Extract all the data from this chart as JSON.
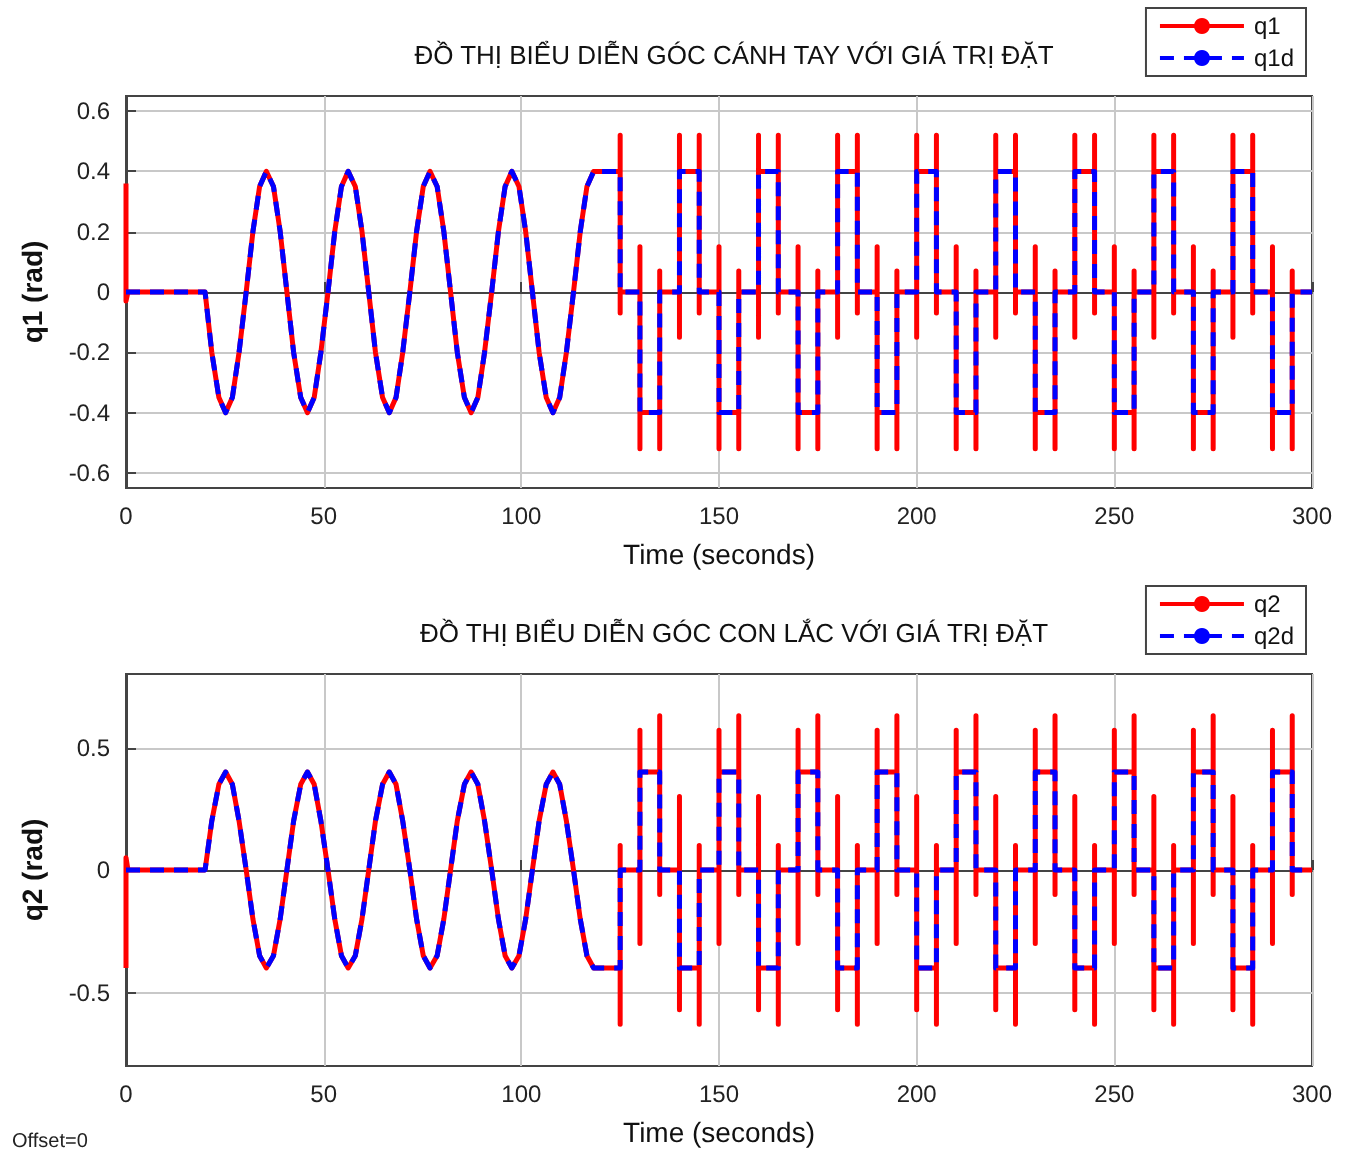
{
  "chart_data": [
    {
      "type": "line",
      "title": "ĐỒ THỊ BIỂU DIỄN GÓC CÁNH TAY VỚI GIÁ TRỊ ĐẶT",
      "xlabel": "Time (seconds)",
      "ylabel": "q1 (rad)",
      "x": [
        0,
        0,
        0.5,
        20,
        21.7,
        23.5,
        25.2,
        26.9,
        28.6,
        30.4,
        32.1,
        33.8,
        35.5,
        37.3,
        39,
        40.7,
        42.4,
        44.2,
        45.9,
        47.6,
        49.3,
        51.1,
        52.8,
        54.5,
        56.2,
        58,
        59.7,
        61.4,
        63.1,
        64.9,
        66.6,
        68.3,
        70,
        71.8,
        73.5,
        75.2,
        76.9,
        78.7,
        80.4,
        82.1,
        83.8,
        85.6,
        87.3,
        89,
        90.7,
        92.5,
        94.2,
        95.9,
        97.6,
        99.4,
        101.1,
        102.8,
        104.5,
        106.3,
        108,
        109.7,
        111.4,
        113.2,
        114.9,
        116.6,
        118.3,
        125,
        125,
        125,
        125,
        130,
        130,
        130,
        130,
        135,
        135,
        135,
        135,
        140,
        140,
        140,
        140,
        145,
        145,
        145,
        145,
        150,
        150,
        150,
        150,
        155,
        155,
        155,
        155,
        160,
        160,
        160,
        160,
        165,
        165,
        165,
        165,
        170,
        170,
        170,
        170,
        175,
        175,
        175,
        175,
        180,
        180,
        180,
        180,
        185,
        185,
        185,
        185,
        190,
        190,
        190,
        190,
        195,
        195,
        195,
        195,
        200,
        200,
        200,
        200,
        205,
        205,
        205,
        205,
        210,
        210,
        210,
        210,
        215,
        215,
        215,
        215,
        220,
        220,
        220,
        220,
        225,
        225,
        225,
        225,
        230,
        230,
        230,
        230,
        235,
        235,
        235,
        235,
        240,
        240,
        240,
        240,
        245,
        245,
        245,
        245,
        250,
        250,
        250,
        250,
        255,
        255,
        255,
        255,
        260,
        260,
        260,
        260,
        265,
        265,
        265,
        265,
        270,
        270,
        270,
        270,
        275,
        275,
        275,
        275,
        280,
        280,
        280,
        280,
        285,
        285,
        285,
        285,
        290,
        290,
        290,
        290,
        295,
        295,
        295,
        295,
        300
      ],
      "series": [
        {
          "name": "q1",
          "color": "#ff0000",
          "line_style": "solid",
          "values": [
            0.36,
            -0.03,
            0,
            0,
            -0.2,
            -0.35,
            -0.4,
            -0.35,
            -0.2,
            0,
            0.2,
            0.35,
            0.4,
            0.35,
            0.2,
            0,
            -0.2,
            -0.35,
            -0.4,
            -0.35,
            -0.2,
            0,
            0.2,
            0.35,
            0.4,
            0.35,
            0.2,
            0,
            -0.2,
            -0.35,
            -0.4,
            -0.35,
            -0.2,
            0,
            0.2,
            0.35,
            0.4,
            0.35,
            0.2,
            0,
            -0.2,
            -0.35,
            -0.4,
            -0.35,
            -0.2,
            0,
            0.2,
            0.35,
            0.4,
            0.35,
            0.2,
            0,
            -0.2,
            -0.35,
            -0.4,
            -0.35,
            -0.2,
            0,
            0.2,
            0.35,
            0.4,
            0.4,
            0.52,
            -0.07,
            0,
            0,
            0.15,
            -0.52,
            -0.4,
            -0.4,
            -0.52,
            0.07,
            0,
            0,
            -0.15,
            0.52,
            0.4,
            0.4,
            0.52,
            -0.07,
            0,
            0,
            0.15,
            -0.52,
            -0.4,
            -0.4,
            -0.52,
            0.07,
            0,
            0,
            -0.15,
            0.52,
            0.4,
            0.4,
            0.52,
            -0.07,
            0,
            0,
            0.15,
            -0.52,
            -0.4,
            -0.4,
            -0.52,
            0.07,
            0,
            0,
            -0.15,
            0.52,
            0.4,
            0.4,
            0.52,
            -0.07,
            0,
            0,
            0.15,
            -0.52,
            -0.4,
            -0.4,
            -0.52,
            0.07,
            0,
            0,
            -0.15,
            0.52,
            0.4,
            0.4,
            0.52,
            -0.07,
            0,
            0,
            0.15,
            -0.52,
            -0.4,
            -0.4,
            -0.52,
            0.07,
            0,
            0,
            -0.15,
            0.52,
            0.4,
            0.4,
            0.52,
            -0.07,
            0,
            0,
            0.15,
            -0.52,
            -0.4,
            -0.4,
            -0.52,
            0.07,
            0,
            0,
            -0.15,
            0.52,
            0.4,
            0.4,
            0.52,
            -0.07,
            0,
            0,
            0.15,
            -0.52,
            -0.4,
            -0.4,
            -0.52,
            0.07,
            0,
            0,
            -0.15,
            0.52,
            0.4,
            0.4,
            0.52,
            -0.07,
            0,
            0,
            0.15,
            -0.52,
            -0.4,
            -0.4,
            -0.52,
            0.07,
            0,
            0,
            -0.15,
            0.52,
            0.4,
            0.4,
            0.52,
            -0.07,
            0,
            0,
            0.15,
            -0.52,
            -0.4,
            -0.4,
            -0.52,
            0.07,
            0,
            0
          ]
        },
        {
          "name": "q1d",
          "color": "#0000ff",
          "line_style": "dashed",
          "values": [
            0,
            0,
            0,
            0,
            -0.2,
            -0.35,
            -0.4,
            -0.35,
            -0.2,
            0,
            0.2,
            0.35,
            0.4,
            0.35,
            0.2,
            0,
            -0.2,
            -0.35,
            -0.4,
            -0.35,
            -0.2,
            0,
            0.2,
            0.35,
            0.4,
            0.35,
            0.2,
            0,
            -0.2,
            -0.35,
            -0.4,
            -0.35,
            -0.2,
            0,
            0.2,
            0.35,
            0.4,
            0.35,
            0.2,
            0,
            -0.2,
            -0.35,
            -0.4,
            -0.35,
            -0.2,
            0,
            0.2,
            0.35,
            0.4,
            0.35,
            0.2,
            0,
            -0.2,
            -0.35,
            -0.4,
            -0.35,
            -0.2,
            0,
            0.2,
            0.35,
            0.4,
            0.4,
            0.4,
            0,
            0,
            0,
            0,
            -0.4,
            -0.4,
            -0.4,
            -0.4,
            0,
            0,
            0,
            0,
            0.4,
            0.4,
            0.4,
            0.4,
            0,
            0,
            0,
            0,
            -0.4,
            -0.4,
            -0.4,
            -0.4,
            0,
            0,
            0,
            0,
            0.4,
            0.4,
            0.4,
            0.4,
            0,
            0,
            0,
            0,
            -0.4,
            -0.4,
            -0.4,
            -0.4,
            0,
            0,
            0,
            0,
            0.4,
            0.4,
            0.4,
            0.4,
            0,
            0,
            0,
            0,
            -0.4,
            -0.4,
            -0.4,
            -0.4,
            0,
            0,
            0,
            0,
            0.4,
            0.4,
            0.4,
            0.4,
            0,
            0,
            0,
            0,
            -0.4,
            -0.4,
            -0.4,
            -0.4,
            0,
            0,
            0,
            0,
            0.4,
            0.4,
            0.4,
            0.4,
            0,
            0,
            0,
            0,
            -0.4,
            -0.4,
            -0.4,
            -0.4,
            0,
            0,
            0,
            0,
            0.4,
            0.4,
            0.4,
            0.4,
            0,
            0,
            0,
            0,
            -0.4,
            -0.4,
            -0.4,
            -0.4,
            0,
            0,
            0,
            0,
            0.4,
            0.4,
            0.4,
            0.4,
            0,
            0,
            0,
            0,
            -0.4,
            -0.4,
            -0.4,
            -0.4,
            0,
            0,
            0,
            0,
            0.4,
            0.4,
            0.4,
            0.4,
            0,
            0,
            0,
            0,
            -0.4,
            -0.4,
            -0.4,
            -0.4,
            0,
            0,
            0
          ]
        }
      ],
      "xlim": [
        0,
        300
      ],
      "xticks": [
        0,
        50,
        100,
        150,
        200,
        250,
        300
      ],
      "ylim": [
        -0.65,
        0.65
      ],
      "yticks": [
        -0.6,
        -0.4,
        -0.2,
        0,
        0.2,
        0.4,
        0.6
      ],
      "grid": true,
      "legend": "top right"
    },
    {
      "type": "line",
      "title": "ĐỒ THỊ BIỂU DIỄN GÓC CON LẮC VỚI GIÁ TRỊ ĐẶT",
      "xlabel": "Time (seconds)",
      "ylabel": "q2 (rad)",
      "x": [
        0,
        0,
        0.5,
        20,
        21.7,
        23.5,
        25.2,
        26.9,
        28.6,
        30.4,
        32.1,
        33.8,
        35.5,
        37.3,
        39,
        40.7,
        42.4,
        44.2,
        45.9,
        47.6,
        49.3,
        51.1,
        52.8,
        54.5,
        56.2,
        58,
        59.7,
        61.4,
        63.1,
        64.9,
        66.6,
        68.3,
        70,
        71.8,
        73.5,
        75.2,
        76.9,
        78.7,
        80.4,
        82.1,
        83.8,
        85.6,
        87.3,
        89,
        90.7,
        92.5,
        94.2,
        95.9,
        97.6,
        99.4,
        101.1,
        102.8,
        104.5,
        106.3,
        108,
        109.7,
        111.4,
        113.2,
        114.9,
        116.6,
        118.3,
        125,
        125,
        125,
        125,
        130,
        130,
        130,
        130,
        135,
        135,
        135,
        135,
        140,
        140,
        140,
        140,
        145,
        145,
        145,
        145,
        150,
        150,
        150,
        150,
        155,
        155,
        155,
        155,
        160,
        160,
        160,
        160,
        165,
        165,
        165,
        165,
        170,
        170,
        170,
        170,
        175,
        175,
        175,
        175,
        180,
        180,
        180,
        180,
        185,
        185,
        185,
        185,
        190,
        190,
        190,
        190,
        195,
        195,
        195,
        195,
        200,
        200,
        200,
        200,
        205,
        205,
        205,
        205,
        210,
        210,
        210,
        210,
        215,
        215,
        215,
        215,
        220,
        220,
        220,
        220,
        225,
        225,
        225,
        225,
        230,
        230,
        230,
        230,
        235,
        235,
        235,
        235,
        240,
        240,
        240,
        240,
        245,
        245,
        245,
        245,
        250,
        250,
        250,
        250,
        255,
        255,
        255,
        255,
        260,
        260,
        260,
        260,
        265,
        265,
        265,
        265,
        270,
        270,
        270,
        270,
        275,
        275,
        275,
        275,
        280,
        280,
        280,
        280,
        285,
        285,
        285,
        285,
        290,
        290,
        290,
        290,
        295,
        295,
        295,
        295,
        300
      ],
      "series": [
        {
          "name": "q2",
          "color": "#ff0000",
          "line_style": "solid",
          "values": [
            -0.4,
            0.05,
            0,
            0,
            0.2,
            0.35,
            0.4,
            0.35,
            0.2,
            0,
            -0.2,
            -0.35,
            -0.4,
            -0.35,
            -0.2,
            0,
            0.2,
            0.35,
            0.4,
            0.35,
            0.2,
            0,
            -0.2,
            -0.35,
            -0.4,
            -0.35,
            -0.2,
            0,
            0.2,
            0.35,
            0.4,
            0.35,
            0.2,
            0,
            -0.2,
            -0.35,
            -0.4,
            -0.35,
            -0.2,
            0,
            0.2,
            0.35,
            0.4,
            0.35,
            0.2,
            0,
            -0.2,
            -0.35,
            -0.4,
            -0.35,
            -0.2,
            0,
            0.2,
            0.35,
            0.4,
            0.35,
            0.2,
            0,
            -0.2,
            -0.35,
            -0.4,
            -0.4,
            -0.63,
            0.1,
            0,
            0,
            -0.3,
            0.57,
            0.4,
            0.4,
            0.63,
            -0.1,
            0,
            0,
            0.3,
            -0.57,
            -0.4,
            -0.4,
            -0.63,
            0.1,
            0,
            0,
            -0.3,
            0.57,
            0.4,
            0.4,
            0.63,
            -0.1,
            0,
            0,
            0.3,
            -0.57,
            -0.4,
            -0.4,
            -0.63,
            0.1,
            0,
            0,
            -0.3,
            0.57,
            0.4,
            0.4,
            0.63,
            -0.1,
            0,
            0,
            0.3,
            -0.57,
            -0.4,
            -0.4,
            -0.63,
            0.1,
            0,
            0,
            -0.3,
            0.57,
            0.4,
            0.4,
            0.63,
            -0.1,
            0,
            0,
            0.3,
            -0.57,
            -0.4,
            -0.4,
            -0.63,
            0.1,
            0,
            0,
            -0.3,
            0.57,
            0.4,
            0.4,
            0.63,
            -0.1,
            0,
            0,
            0.3,
            -0.57,
            -0.4,
            -0.4,
            -0.63,
            0.1,
            0,
            0,
            -0.3,
            0.57,
            0.4,
            0.4,
            0.63,
            -0.1,
            0,
            0,
            0.3,
            -0.57,
            -0.4,
            -0.4,
            -0.63,
            0.1,
            0,
            0,
            -0.3,
            0.57,
            0.4,
            0.4,
            0.63,
            -0.1,
            0,
            0,
            0.3,
            -0.57,
            -0.4,
            -0.4,
            -0.63,
            0.1,
            0,
            0,
            -0.3,
            0.57,
            0.4,
            0.4,
            0.63,
            -0.1,
            0,
            0,
            0.3,
            -0.57,
            -0.4,
            -0.4,
            -0.63,
            0.1,
            0,
            0,
            -0.3,
            0.57,
            0.4,
            0.4,
            0.63,
            -0.1,
            0,
            0
          ]
        },
        {
          "name": "q2d",
          "color": "#0000ff",
          "line_style": "dashed",
          "values": [
            0,
            0,
            0,
            0,
            0.2,
            0.35,
            0.4,
            0.35,
            0.2,
            0,
            -0.2,
            -0.35,
            -0.4,
            -0.35,
            -0.2,
            0,
            0.2,
            0.35,
            0.4,
            0.35,
            0.2,
            0,
            -0.2,
            -0.35,
            -0.4,
            -0.35,
            -0.2,
            0,
            0.2,
            0.35,
            0.4,
            0.35,
            0.2,
            0,
            -0.2,
            -0.35,
            -0.4,
            -0.35,
            -0.2,
            0,
            0.2,
            0.35,
            0.4,
            0.35,
            0.2,
            0,
            -0.2,
            -0.35,
            -0.4,
            -0.35,
            -0.2,
            0,
            0.2,
            0.35,
            0.4,
            0.35,
            0.2,
            0,
            -0.2,
            -0.35,
            -0.4,
            -0.4,
            -0.4,
            0,
            0,
            0,
            0,
            0.4,
            0.4,
            0.4,
            0.4,
            0,
            0,
            0,
            0,
            -0.4,
            -0.4,
            -0.4,
            -0.4,
            0,
            0,
            0,
            0,
            0.4,
            0.4,
            0.4,
            0.4,
            0,
            0,
            0,
            0,
            -0.4,
            -0.4,
            -0.4,
            -0.4,
            0,
            0,
            0,
            0,
            0.4,
            0.4,
            0.4,
            0.4,
            0,
            0,
            0,
            0,
            -0.4,
            -0.4,
            -0.4,
            -0.4,
            0,
            0,
            0,
            0,
            0.4,
            0.4,
            0.4,
            0.4,
            0,
            0,
            0,
            0,
            -0.4,
            -0.4,
            -0.4,
            -0.4,
            0,
            0,
            0,
            0,
            0.4,
            0.4,
            0.4,
            0.4,
            0,
            0,
            0,
            0,
            -0.4,
            -0.4,
            -0.4,
            -0.4,
            0,
            0,
            0,
            0,
            0.4,
            0.4,
            0.4,
            0.4,
            0,
            0,
            0,
            0,
            -0.4,
            -0.4,
            -0.4,
            -0.4,
            0,
            0,
            0,
            0,
            0.4,
            0.4,
            0.4,
            0.4,
            0,
            0,
            0,
            0,
            -0.4,
            -0.4,
            -0.4,
            -0.4,
            0,
            0,
            0,
            0,
            0.4,
            0.4,
            0.4,
            0.4,
            0,
            0,
            0,
            0,
            -0.4,
            -0.4,
            -0.4,
            -0.4,
            0,
            0,
            0,
            0,
            0.4,
            0.4,
            0.4,
            0.4,
            0,
            0,
            0
          ]
        }
      ],
      "xlim": [
        0,
        300
      ],
      "xticks": [
        0,
        50,
        100,
        150,
        200,
        250,
        300
      ],
      "ylim": [
        -0.8,
        0.8
      ],
      "yticks": [
        -0.5,
        0,
        0.5
      ],
      "grid": true,
      "legend": "top right",
      "annotations": [
        "Offset=0"
      ]
    }
  ]
}
